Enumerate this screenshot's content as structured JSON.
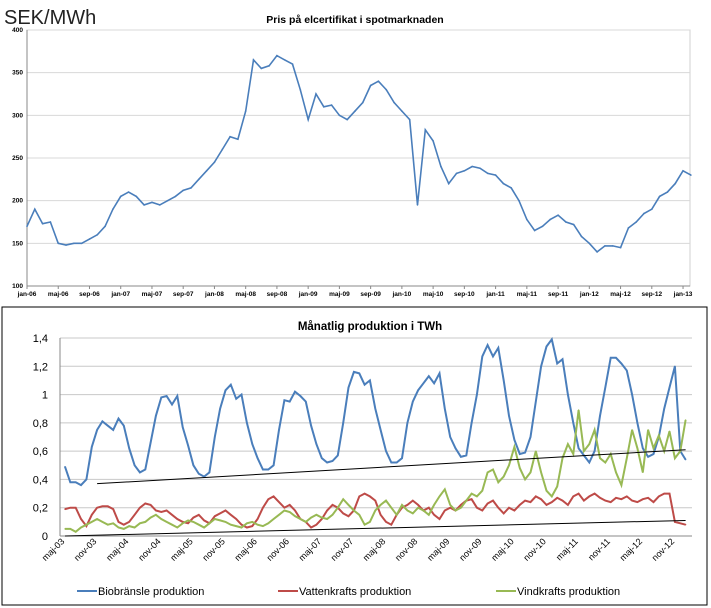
{
  "chart_data": [
    {
      "type": "line",
      "unit_label": "SEK/MWh",
      "title": "Pris på elcertifikat i spotmarknaden",
      "ylim": [
        100,
        400
      ],
      "yticks": [
        100,
        150,
        200,
        250,
        300,
        350,
        400
      ],
      "xtick_labels": [
        "jan-06",
        "maj-06",
        "sep-06",
        "jan-07",
        "maj-07",
        "sep-07",
        "jan-08",
        "maj-08",
        "sep-08",
        "jan-09",
        "maj-09",
        "sep-09",
        "jan-10",
        "maj-10",
        "sep-10",
        "jan-11",
        "maj-11",
        "sep-11",
        "jan-12",
        "maj-12",
        "sep-12",
        "jan-13"
      ],
      "x_start": "jan-06",
      "x_step": "month",
      "grid": "horizontal",
      "color": "#4a7ebb",
      "values": [
        170,
        190,
        173,
        175,
        150,
        148,
        150,
        150,
        155,
        160,
        170,
        190,
        205,
        210,
        205,
        195,
        198,
        195,
        200,
        205,
        212,
        215,
        225,
        235,
        245,
        260,
        275,
        272,
        305,
        365,
        355,
        358,
        370,
        365,
        360,
        330,
        295,
        325,
        310,
        312,
        300,
        295,
        305,
        315,
        335,
        340,
        330,
        315,
        305,
        295,
        195,
        283,
        270,
        240,
        220,
        232,
        235,
        240,
        238,
        232,
        230,
        220,
        215,
        200,
        178,
        165,
        170,
        178,
        183,
        175,
        172,
        158,
        150,
        140,
        147,
        147,
        145,
        168,
        175,
        185,
        190,
        205,
        210,
        220,
        235,
        230
      ]
    },
    {
      "type": "line",
      "title": "Månatlig  produktion  i TWh",
      "ylim": [
        0,
        1.4
      ],
      "yticks": [
        "0",
        "0,2",
        "0,4",
        "0,6",
        "0,8",
        "1",
        "1,2",
        "1,4"
      ],
      "xtick_labels": [
        "maj-03",
        "nov-03",
        "maj-04",
        "nov-04",
        "maj-05",
        "nov-05",
        "maj-06",
        "nov-06",
        "maj-07",
        "nov-07",
        "maj-08",
        "nov-08",
        "maj-09",
        "nov-09",
        "maj-10",
        "nov-10",
        "maj-11",
        "nov-11",
        "maj-12",
        "nov-12"
      ],
      "x_start": "maj-03",
      "x_step": "month",
      "grid": "horizontal",
      "legend": "bottom",
      "series": [
        {
          "name": "Biobränsle produktion",
          "color": "#4a7ebb",
          "values": [
            0.49,
            0.38,
            0.38,
            0.36,
            0.4,
            0.63,
            0.75,
            0.81,
            0.78,
            0.75,
            0.83,
            0.78,
            0.62,
            0.5,
            0.45,
            0.47,
            0.66,
            0.85,
            0.98,
            0.99,
            0.93,
            0.99,
            0.77,
            0.64,
            0.5,
            0.44,
            0.42,
            0.45,
            0.7,
            0.9,
            1.03,
            1.07,
            0.97,
            1.0,
            0.8,
            0.65,
            0.55,
            0.47,
            0.47,
            0.5,
            0.75,
            0.96,
            0.95,
            1.02,
            0.99,
            0.95,
            0.78,
            0.65,
            0.55,
            0.52,
            0.53,
            0.57,
            0.8,
            1.05,
            1.16,
            1.15,
            1.07,
            1.1,
            0.9,
            0.75,
            0.6,
            0.52,
            0.52,
            0.55,
            0.8,
            0.95,
            1.03,
            1.08,
            1.13,
            1.08,
            1.15,
            0.9,
            0.7,
            0.62,
            0.56,
            0.57,
            0.8,
            1.0,
            1.27,
            1.35,
            1.27,
            1.33,
            1.1,
            0.85,
            0.68,
            0.58,
            0.59,
            0.7,
            0.95,
            1.2,
            1.34,
            1.39,
            1.22,
            1.25,
            1.0,
            0.8,
            0.62,
            0.57,
            0.52,
            0.6,
            0.85,
            1.05,
            1.26,
            1.26,
            1.22,
            1.17,
            1.0,
            0.8,
            0.62,
            0.56,
            0.58,
            0.7,
            0.9,
            1.05,
            1.2,
            0.6,
            0.54
          ]
        },
        {
          "name": "Vattenkrafts produktion",
          "color": "#be4b48",
          "values": [
            0.19,
            0.2,
            0.2,
            0.12,
            0.07,
            0.15,
            0.2,
            0.21,
            0.21,
            0.19,
            0.1,
            0.08,
            0.1,
            0.15,
            0.2,
            0.23,
            0.22,
            0.18,
            0.17,
            0.18,
            0.15,
            0.12,
            0.1,
            0.09,
            0.13,
            0.15,
            0.11,
            0.09,
            0.14,
            0.16,
            0.18,
            0.15,
            0.12,
            0.08,
            0.06,
            0.07,
            0.12,
            0.2,
            0.26,
            0.28,
            0.24,
            0.2,
            0.22,
            0.18,
            0.12,
            0.1,
            0.06,
            0.08,
            0.12,
            0.18,
            0.22,
            0.2,
            0.16,
            0.14,
            0.18,
            0.28,
            0.3,
            0.28,
            0.25,
            0.15,
            0.1,
            0.08,
            0.15,
            0.2,
            0.22,
            0.25,
            0.22,
            0.18,
            0.2,
            0.15,
            0.12,
            0.18,
            0.2,
            0.18,
            0.22,
            0.25,
            0.26,
            0.2,
            0.18,
            0.23,
            0.25,
            0.2,
            0.16,
            0.2,
            0.18,
            0.22,
            0.25,
            0.24,
            0.28,
            0.26,
            0.22,
            0.24,
            0.27,
            0.25,
            0.22,
            0.28,
            0.3,
            0.25,
            0.28,
            0.3,
            0.27,
            0.25,
            0.24,
            0.27,
            0.26,
            0.28,
            0.25,
            0.24,
            0.26,
            0.27,
            0.24,
            0.28,
            0.3,
            0.3,
            0.1,
            0.09,
            0.08
          ]
        },
        {
          "name": "Vindkrafts produktion",
          "color": "#98b954",
          "values": [
            0.05,
            0.05,
            0.03,
            0.06,
            0.08,
            0.1,
            0.12,
            0.1,
            0.08,
            0.09,
            0.06,
            0.05,
            0.07,
            0.06,
            0.09,
            0.1,
            0.13,
            0.15,
            0.12,
            0.1,
            0.08,
            0.06,
            0.09,
            0.11,
            0.1,
            0.08,
            0.06,
            0.09,
            0.12,
            0.11,
            0.1,
            0.08,
            0.07,
            0.06,
            0.09,
            0.1,
            0.08,
            0.07,
            0.09,
            0.12,
            0.15,
            0.18,
            0.17,
            0.14,
            0.12,
            0.1,
            0.13,
            0.15,
            0.13,
            0.12,
            0.15,
            0.2,
            0.26,
            0.22,
            0.18,
            0.15,
            0.08,
            0.1,
            0.18,
            0.22,
            0.25,
            0.2,
            0.15,
            0.22,
            0.18,
            0.16,
            0.2,
            0.18,
            0.15,
            0.22,
            0.28,
            0.33,
            0.22,
            0.18,
            0.2,
            0.25,
            0.3,
            0.28,
            0.32,
            0.45,
            0.47,
            0.38,
            0.42,
            0.5,
            0.63,
            0.48,
            0.4,
            0.45,
            0.6,
            0.45,
            0.32,
            0.28,
            0.35,
            0.55,
            0.65,
            0.58,
            0.89,
            0.6,
            0.65,
            0.75,
            0.55,
            0.52,
            0.58,
            0.45,
            0.36,
            0.55,
            0.75,
            0.62,
            0.45,
            0.75,
            0.62,
            0.71,
            0.6,
            0.74,
            0.55,
            0.6,
            0.82
          ]
        }
      ],
      "trendlines": [
        {
          "color": "#000000",
          "from": {
            "month": "nov-03",
            "value": 0.37
          },
          "to": {
            "month": "jan-13",
            "value": 0.61
          }
        },
        {
          "color": "#000000",
          "from": {
            "month": "maj-03",
            "value": 0.0
          },
          "to": {
            "month": "jan-13",
            "value": 0.11
          }
        }
      ]
    }
  ]
}
